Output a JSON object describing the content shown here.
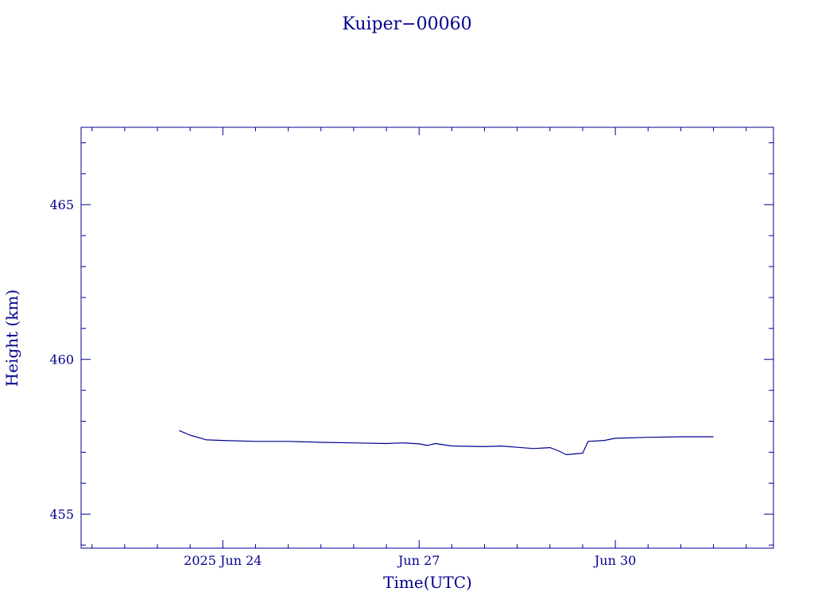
{
  "chart_data": {
    "type": "line",
    "title": "Kuiper−00060",
    "xlabel": "Time(UTC)",
    "ylabel": "Height (km)",
    "color": "#00008b",
    "grid": false,
    "x_tick_labels": [
      "2025 Jun 24",
      "Jun 27",
      "Jun 30"
    ],
    "y_tick_labels": [
      "455",
      "460",
      "465"
    ],
    "xlim": [
      "2025-06-21T20:00",
      "2025-07-02T10:00"
    ],
    "ylim": [
      453.9,
      467.5
    ],
    "series": [
      {
        "points": [
          [
            "2025-06-23T08:00",
            457.7
          ],
          [
            "2025-06-23T12:00",
            457.55
          ],
          [
            "2025-06-23T18:00",
            457.4
          ],
          [
            "2025-06-24T00:00",
            457.38
          ],
          [
            "2025-06-24T12:00",
            457.35
          ],
          [
            "2025-06-25T00:00",
            457.35
          ],
          [
            "2025-06-25T12:00",
            457.32
          ],
          [
            "2025-06-26T00:00",
            457.3
          ],
          [
            "2025-06-26T12:00",
            457.28
          ],
          [
            "2025-06-26T18:00",
            457.3
          ],
          [
            "2025-06-27T00:00",
            457.27
          ],
          [
            "2025-06-27T03:00",
            457.22
          ],
          [
            "2025-06-27T06:00",
            457.28
          ],
          [
            "2025-06-27T12:00",
            457.2
          ],
          [
            "2025-06-28T00:00",
            457.18
          ],
          [
            "2025-06-28T06:00",
            457.2
          ],
          [
            "2025-06-28T12:00",
            457.16
          ],
          [
            "2025-06-28T18:00",
            457.12
          ],
          [
            "2025-06-29T00:00",
            457.15
          ],
          [
            "2025-06-29T03:00",
            457.05
          ],
          [
            "2025-06-29T06:00",
            456.92
          ],
          [
            "2025-06-29T12:00",
            456.97
          ],
          [
            "2025-06-29T14:00",
            457.35
          ],
          [
            "2025-06-29T20:00",
            457.38
          ],
          [
            "2025-06-30T00:00",
            457.45
          ],
          [
            "2025-06-30T12:00",
            457.48
          ],
          [
            "2025-07-01T00:00",
            457.5
          ],
          [
            "2025-07-01T12:00",
            457.5
          ]
        ]
      }
    ]
  }
}
